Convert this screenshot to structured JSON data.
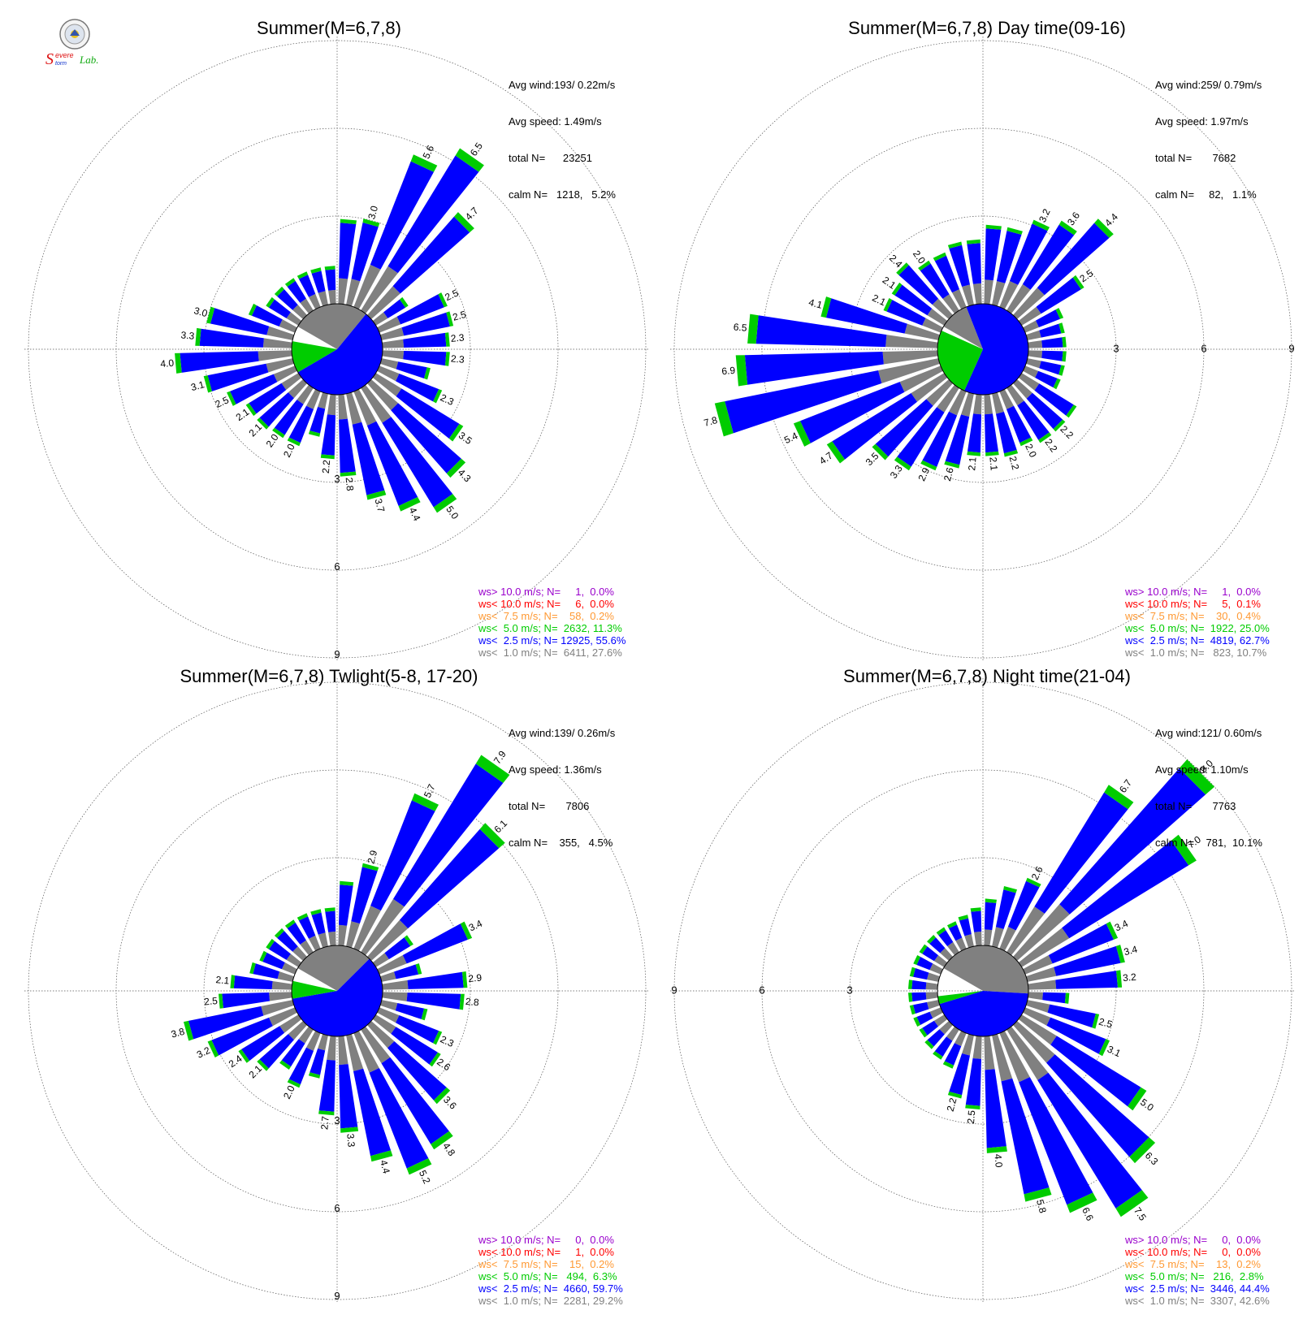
{
  "logo": {
    "text_s": "S",
    "text_evere": "evere",
    "text_torm": "torm",
    "text_lab": "Lab."
  },
  "colors": {
    "calm": "#808080",
    "bin1": "#808080",
    "bin2": "#0000ff",
    "bin3": "#00cc00",
    "bin4": "#ff9933",
    "bin5": "#ff0000",
    "bin6": "#9900cc",
    "grid": "#555555"
  },
  "chart_data": [
    {
      "type": "wind-rose",
      "title": "Summer(M=6,7,8)",
      "ring_labels": [
        "3",
        "6",
        "9"
      ],
      "ring_label_direction": "S",
      "stats": {
        "avg_wind": "Avg wind:193/ 0.22m/s",
        "avg_speed": "Avg speed: 1.49m/s",
        "total": "total N=      23251",
        "calm": "calm N=   1218,   5.2%"
      },
      "calm_pie": {
        "bin1": 27.6,
        "bin2": 55.6,
        "bin3": 11.3
      },
      "sectors": [
        {
          "dir": 5,
          "total": 2.9
        },
        {
          "dir": 15,
          "total": 3.0,
          "label": "3.0"
        },
        {
          "dir": 25,
          "total": 5.6,
          "label": "5.6"
        },
        {
          "dir": 35,
          "total": 6.5,
          "label": "6.5"
        },
        {
          "dir": 45,
          "total": 4.7,
          "label": "4.7"
        },
        {
          "dir": 55,
          "total": 1.3
        },
        {
          "dir": 65,
          "total": 2.5,
          "label": "2.5"
        },
        {
          "dir": 75,
          "total": 2.5,
          "label": "2.5"
        },
        {
          "dir": 85,
          "total": 2.3,
          "label": "2.3"
        },
        {
          "dir": 95,
          "total": 2.3,
          "label": "2.3"
        },
        {
          "dir": 105,
          "total": 1.7
        },
        {
          "dir": 115,
          "total": 2.3,
          "label": "2.3"
        },
        {
          "dir": 125,
          "total": 3.5,
          "label": "3.5"
        },
        {
          "dir": 135,
          "total": 4.3,
          "label": "4.3"
        },
        {
          "dir": 145,
          "total": 5.0,
          "label": "5.0"
        },
        {
          "dir": 155,
          "total": 4.4,
          "label": "4.4"
        },
        {
          "dir": 165,
          "total": 3.7,
          "label": "3.7"
        },
        {
          "dir": 175,
          "total": 2.8,
          "label": "2.8"
        },
        {
          "dir": 185,
          "total": 2.2,
          "label": "2.2"
        },
        {
          "dir": 195,
          "total": 1.5
        },
        {
          "dir": 205,
          "total": 2.0,
          "label": "2.0"
        },
        {
          "dir": 215,
          "total": 2.0,
          "label": "2.0"
        },
        {
          "dir": 225,
          "total": 2.1,
          "label": "2.1"
        },
        {
          "dir": 235,
          "total": 2.1,
          "label": "2.1"
        },
        {
          "dir": 245,
          "total": 2.5,
          "label": "2.5"
        },
        {
          "dir": 255,
          "total": 3.1,
          "label": "3.1"
        },
        {
          "dir": 265,
          "total": 4.0,
          "label": "4.0"
        },
        {
          "dir": 275,
          "total": 3.3,
          "label": "3.3"
        },
        {
          "dir": 285,
          "total": 3.0,
          "label": "3.0"
        },
        {
          "dir": 295,
          "total": 1.7
        },
        {
          "dir": 305,
          "total": 1.3
        },
        {
          "dir": 315,
          "total": 1.3
        },
        {
          "dir": 325,
          "total": 1.3
        },
        {
          "dir": 335,
          "total": 1.3
        },
        {
          "dir": 345,
          "total": 1.3
        },
        {
          "dir": 355,
          "total": 1.3
        }
      ],
      "legend": [
        {
          "text": "ws> 10.0 m/s; N=     1,  0.0%",
          "color": "#9900cc"
        },
        {
          "text": "ws< 10.0 m/s; N=     6,  0.0%",
          "color": "#ff0000"
        },
        {
          "text": "ws<  7.5 m/s; N=    58,  0.2%",
          "color": "#ff9933"
        },
        {
          "text": "ws<  5.0 m/s; N=  2632, 11.3%",
          "color": "#00cc00"
        },
        {
          "text": "ws<  2.5 m/s; N= 12925, 55.6%",
          "color": "#0000ff"
        },
        {
          "text": "ws<  1.0 m/s; N=  6411, 27.6%",
          "color": "#808080"
        }
      ]
    },
    {
      "type": "wind-rose",
      "title": "Summer(M=6,7,8) Day time(09-16)",
      "ring_labels": [
        "3",
        "6",
        "9"
      ],
      "ring_label_direction": "E",
      "stats": {
        "avg_wind": "Avg wind:259/ 0.79m/s",
        "avg_speed": "Avg speed: 1.97m/s",
        "total": "total N=       7682",
        "calm": "calm N=     82,   1.1%"
      },
      "calm_pie": {
        "bin1": 10.7,
        "bin2": 62.7,
        "bin3": 25.0
      },
      "sectors": [
        {
          "dir": 5,
          "total": 2.7
        },
        {
          "dir": 15,
          "total": 2.7
        },
        {
          "dir": 25,
          "total": 3.2,
          "label": "3.2"
        },
        {
          "dir": 35,
          "total": 3.6,
          "label": "3.6"
        },
        {
          "dir": 45,
          "total": 4.4,
          "label": "4.4"
        },
        {
          "dir": 55,
          "total": 2.5,
          "label": "2.5"
        },
        {
          "dir": 65,
          "total": 1.4
        },
        {
          "dir": 75,
          "total": 1.3
        },
        {
          "dir": 85,
          "total": 1.3
        },
        {
          "dir": 95,
          "total": 1.3
        },
        {
          "dir": 105,
          "total": 1.3
        },
        {
          "dir": 115,
          "total": 1.3
        },
        {
          "dir": 125,
          "total": 2.2
        },
        {
          "dir": 135,
          "total": 2.2,
          "label": "2.2"
        },
        {
          "dir": 145,
          "total": 2.2,
          "label": "2.2"
        },
        {
          "dir": 155,
          "total": 2.0,
          "label": "2.0"
        },
        {
          "dir": 165,
          "total": 2.2,
          "label": "2.2"
        },
        {
          "dir": 175,
          "total": 2.1,
          "label": "2.1"
        },
        {
          "dir": 185,
          "total": 2.1,
          "label": "2.1"
        },
        {
          "dir": 195,
          "total": 2.6,
          "label": "2.6"
        },
        {
          "dir": 205,
          "total": 2.9,
          "label": "2.9"
        },
        {
          "dir": 215,
          "total": 3.3,
          "label": "3.3"
        },
        {
          "dir": 225,
          "total": 3.5,
          "label": "3.5"
        },
        {
          "dir": 235,
          "total": 4.7,
          "label": "4.7"
        },
        {
          "dir": 245,
          "total": 5.4,
          "label": "5.4"
        },
        {
          "dir": 255,
          "total": 7.8,
          "label": "7.8"
        },
        {
          "dir": 265,
          "total": 6.9,
          "label": "6.9"
        },
        {
          "dir": 275,
          "total": 6.5,
          "label": "6.5"
        },
        {
          "dir": 285,
          "total": 4.1,
          "label": "4.1"
        },
        {
          "dir": 295,
          "total": 2.1,
          "label": "2.1"
        },
        {
          "dir": 305,
          "total": 2.1,
          "label": "2.1"
        },
        {
          "dir": 315,
          "total": 2.4,
          "label": "2.4"
        },
        {
          "dir": 325,
          "total": 2.0,
          "label": "2.0"
        },
        {
          "dir": 335,
          "total": 2.0
        },
        {
          "dir": 345,
          "total": 2.2
        },
        {
          "dir": 355,
          "total": 2.2
        }
      ],
      "legend": [
        {
          "text": "ws> 10.0 m/s; N=     1,  0.0%",
          "color": "#9900cc"
        },
        {
          "text": "ws< 10.0 m/s; N=     5,  0.1%",
          "color": "#ff0000"
        },
        {
          "text": "ws<  7.5 m/s; N=    30,  0.4%",
          "color": "#ff9933"
        },
        {
          "text": "ws<  5.0 m/s; N=  1922, 25.0%",
          "color": "#00cc00"
        },
        {
          "text": "ws<  2.5 m/s; N=  4819, 62.7%",
          "color": "#0000ff"
        },
        {
          "text": "ws<  1.0 m/s; N=   823, 10.7%",
          "color": "#808080"
        }
      ]
    },
    {
      "type": "wind-rose",
      "title": "Summer(M=6,7,8) Twlight(5-8, 17-20)",
      "ring_labels": [
        "3",
        "6",
        "9"
      ],
      "ring_label_direction": "S",
      "stats": {
        "avg_wind": "Avg wind:139/ 0.26m/s",
        "avg_speed": "Avg speed: 1.36m/s",
        "total": "total N=       7806",
        "calm": "calm N=    355,   4.5%"
      },
      "calm_pie": {
        "bin1": 29.2,
        "bin2": 59.7,
        "bin3": 6.3
      },
      "sectors": [
        {
          "dir": 5,
          "total": 2.2
        },
        {
          "dir": 15,
          "total": 2.9,
          "label": "2.9"
        },
        {
          "dir": 25,
          "total": 5.7,
          "label": "5.7"
        },
        {
          "dir": 35,
          "total": 7.9,
          "label": "7.9"
        },
        {
          "dir": 45,
          "total": 6.1,
          "label": "6.1"
        },
        {
          "dir": 55,
          "total": 1.5
        },
        {
          "dir": 65,
          "total": 3.4,
          "label": "3.4"
        },
        {
          "dir": 75,
          "total": 1.4
        },
        {
          "dir": 85,
          "total": 2.9,
          "label": "2.9"
        },
        {
          "dir": 95,
          "total": 2.8,
          "label": "2.8"
        },
        {
          "dir": 105,
          "total": 1.6
        },
        {
          "dir": 115,
          "total": 2.3,
          "label": "2.3"
        },
        {
          "dir": 125,
          "total": 2.6,
          "label": "2.6"
        },
        {
          "dir": 135,
          "total": 3.6,
          "label": "3.6"
        },
        {
          "dir": 145,
          "total": 4.8,
          "label": "4.8"
        },
        {
          "dir": 155,
          "total": 5.2,
          "label": "5.2"
        },
        {
          "dir": 165,
          "total": 4.4,
          "label": "4.4"
        },
        {
          "dir": 175,
          "total": 3.3,
          "label": "3.3"
        },
        {
          "dir": 185,
          "total": 2.7,
          "label": "2.7"
        },
        {
          "dir": 195,
          "total": 1.5
        },
        {
          "dir": 205,
          "total": 2.0,
          "label": "2.0"
        },
        {
          "dir": 215,
          "total": 1.6
        },
        {
          "dir": 225,
          "total": 2.1,
          "label": "2.1"
        },
        {
          "dir": 235,
          "total": 2.4,
          "label": "2.4"
        },
        {
          "dir": 245,
          "total": 3.2,
          "label": "3.2"
        },
        {
          "dir": 255,
          "total": 3.8,
          "label": "3.8"
        },
        {
          "dir": 265,
          "total": 2.5,
          "label": "2.5"
        },
        {
          "dir": 275,
          "total": 2.1,
          "label": "2.1"
        },
        {
          "dir": 285,
          "total": 1.5
        },
        {
          "dir": 295,
          "total": 1.3
        },
        {
          "dir": 305,
          "total": 1.3
        },
        {
          "dir": 315,
          "total": 1.3
        },
        {
          "dir": 325,
          "total": 1.3
        },
        {
          "dir": 335,
          "total": 1.3
        },
        {
          "dir": 345,
          "total": 1.3
        },
        {
          "dir": 355,
          "total": 1.3
        }
      ],
      "legend": [
        {
          "text": "ws> 10.0 m/s; N=     0,  0.0%",
          "color": "#9900cc"
        },
        {
          "text": "ws< 10.0 m/s; N=     1,  0.0%",
          "color": "#ff0000"
        },
        {
          "text": "ws<  7.5 m/s; N=    15,  0.2%",
          "color": "#ff9933"
        },
        {
          "text": "ws<  5.0 m/s; N=   494,  6.3%",
          "color": "#00cc00"
        },
        {
          "text": "ws<  2.5 m/s; N=  4660, 59.7%",
          "color": "#0000ff"
        },
        {
          "text": "ws<  1.0 m/s; N=  2281, 29.2%",
          "color": "#808080"
        }
      ]
    },
    {
      "type": "wind-rose",
      "title": "Summer(M=6,7,8) Night time(21-04)",
      "ring_labels": [
        "3",
        "6",
        "9"
      ],
      "ring_label_direction": "W",
      "stats": {
        "avg_wind": "Avg wind:121/ 0.60m/s",
        "avg_speed": "Avg speed: 1.10m/s",
        "total": "total N=       7763",
        "calm": "calm N=    781,  10.1%"
      },
      "calm_pie": {
        "bin1": 42.6,
        "bin2": 44.4,
        "bin3": 2.8
      },
      "sectors": [
        {
          "dir": 5,
          "total": 1.6
        },
        {
          "dir": 15,
          "total": 2.1
        },
        {
          "dir": 25,
          "total": 2.6,
          "label": "2.6"
        },
        {
          "dir": 35,
          "total": 6.7,
          "label": "6.7"
        },
        {
          "dir": 45,
          "total": 9.0,
          "label": "9.0"
        },
        {
          "dir": 55,
          "total": 7.0,
          "label": "7.0"
        },
        {
          "dir": 65,
          "total": 3.4,
          "label": "3.4"
        },
        {
          "dir": 75,
          "total": 3.4,
          "label": "3.4"
        },
        {
          "dir": 85,
          "total": 3.2,
          "label": "3.2"
        },
        {
          "dir": 95,
          "total": 1.4
        },
        {
          "dir": 105,
          "total": 2.5,
          "label": "2.5"
        },
        {
          "dir": 115,
          "total": 3.1,
          "label": "3.1"
        },
        {
          "dir": 125,
          "total": 5.0,
          "label": "5.0"
        },
        {
          "dir": 135,
          "total": 6.3,
          "label": "6.3"
        },
        {
          "dir": 145,
          "total": 7.5,
          "label": "7.5"
        },
        {
          "dir": 155,
          "total": 6.6,
          "label": "6.6"
        },
        {
          "dir": 165,
          "total": 5.8,
          "label": "5.8"
        },
        {
          "dir": 175,
          "total": 4.0,
          "label": "4.0"
        },
        {
          "dir": 185,
          "total": 2.5,
          "label": "2.5"
        },
        {
          "dir": 195,
          "total": 2.2,
          "label": "2.2"
        },
        {
          "dir": 205,
          "total": 1.3
        },
        {
          "dir": 215,
          "total": 1.2
        },
        {
          "dir": 225,
          "total": 1.1
        },
        {
          "dir": 235,
          "total": 1.0
        },
        {
          "dir": 245,
          "total": 1.0
        },
        {
          "dir": 255,
          "total": 1.0
        },
        {
          "dir": 265,
          "total": 1.0
        },
        {
          "dir": 275,
          "total": 1.0
        },
        {
          "dir": 285,
          "total": 1.0
        },
        {
          "dir": 295,
          "total": 1.0
        },
        {
          "dir": 305,
          "total": 1.0
        },
        {
          "dir": 315,
          "total": 1.0
        },
        {
          "dir": 325,
          "total": 1.0
        },
        {
          "dir": 335,
          "total": 1.0
        },
        {
          "dir": 345,
          "total": 1.1
        },
        {
          "dir": 355,
          "total": 1.3
        }
      ],
      "legend": [
        {
          "text": "ws> 10.0 m/s; N=     0,  0.0%",
          "color": "#9900cc"
        },
        {
          "text": "ws< 10.0 m/s; N=     0,  0.0%",
          "color": "#ff0000"
        },
        {
          "text": "ws<  7.5 m/s; N=    13,  0.2%",
          "color": "#ff9933"
        },
        {
          "text": "ws<  5.0 m/s; N=   216,  2.8%",
          "color": "#00cc00"
        },
        {
          "text": "ws<  2.5 m/s; N=  3446, 44.4%",
          "color": "#0000ff"
        },
        {
          "text": "ws<  1.0 m/s; N=  3307, 42.6%",
          "color": "#808080"
        }
      ]
    }
  ]
}
